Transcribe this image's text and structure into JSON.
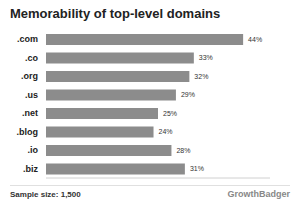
{
  "chart_data": {
    "type": "bar",
    "title": "Memorability of top-level domains",
    "orientation": "horizontal",
    "categories": [
      ".com",
      ".co",
      ".org",
      ".us",
      ".net",
      ".blog",
      ".io",
      ".biz"
    ],
    "values": [
      44,
      33,
      32,
      29,
      25,
      24,
      28,
      31
    ],
    "value_labels": [
      "44%",
      "33%",
      "32%",
      "29%",
      "25%",
      "24%",
      "28%",
      "31%"
    ],
    "data_labels": true,
    "tick_labels": "y",
    "color": "#8c8c8c",
    "xlim": [
      0,
      50
    ],
    "grid": false,
    "annotations": [
      "Sample size: 1,500",
      "GrowthBadger"
    ]
  }
}
